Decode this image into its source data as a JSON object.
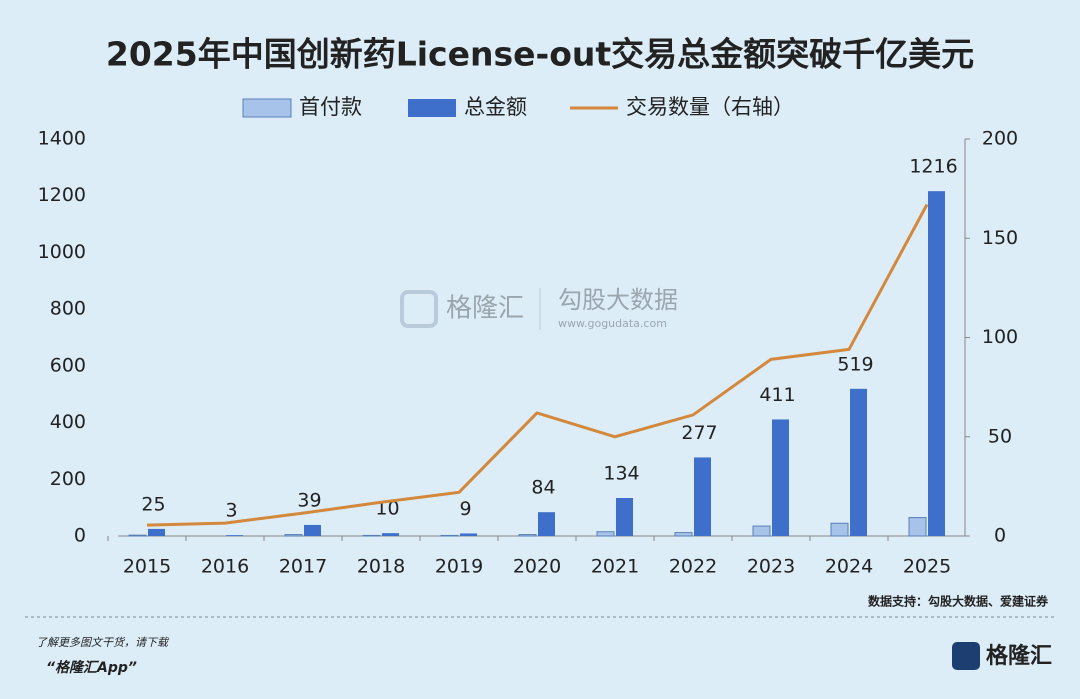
{
  "chart_data": {
    "type": "bar",
    "title": "2025年中国创新药License-out交易总金额突破千亿美元",
    "categories": [
      "2015",
      "2016",
      "2017",
      "2018",
      "2019",
      "2020",
      "2021",
      "2022",
      "2023",
      "2024",
      "2025"
    ],
    "series": [
      {
        "name": "首付款",
        "color": "#a8c3ea",
        "values": [
          3,
          0,
          5,
          2,
          2,
          5,
          15,
          12,
          35,
          45,
          65
        ]
      },
      {
        "name": "总金额",
        "color": "#3d6fcb",
        "values": [
          25,
          3,
          39,
          10,
          9,
          84,
          134,
          277,
          411,
          519,
          1216
        ]
      },
      {
        "name": "交易数量（右轴）",
        "type": "line",
        "axis": "y2",
        "color": "#d3883c",
        "values": [
          5.5,
          6.5,
          11.5,
          17,
          22,
          62,
          50,
          61,
          89,
          94,
          167
        ]
      }
    ],
    "ylim": [
      0,
      1400
    ],
    "yticks": [
      0,
      200,
      400,
      600,
      800,
      1000,
      1200,
      1400
    ],
    "y2lim": [
      0,
      200
    ],
    "y2ticks": [
      0,
      50,
      100,
      150,
      200
    ],
    "source": "数据支持：勾股大数据、爱建证券"
  },
  "watermark": {
    "brand": "格隆汇",
    "partner": "勾股大数据",
    "url": "www.gogudata.com"
  },
  "footer": {
    "prompt": "了解更多图文干货，请下载",
    "app": "“格隆汇App”",
    "logo": "格隆汇"
  }
}
